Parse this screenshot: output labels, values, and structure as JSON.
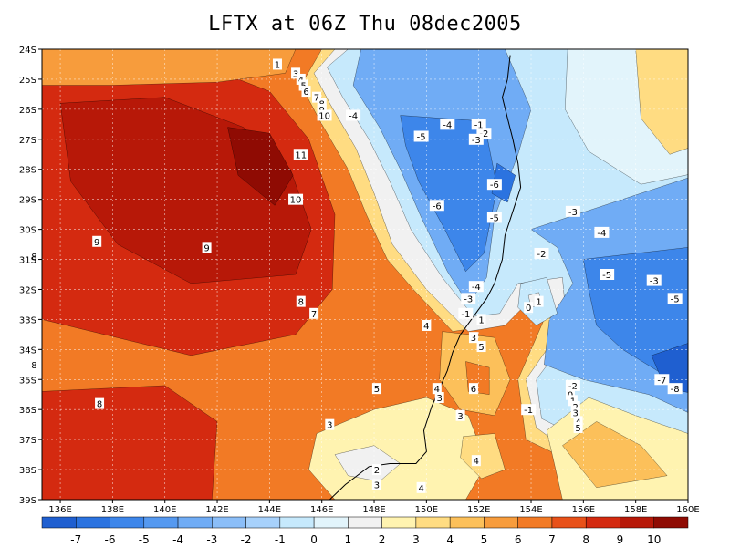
{
  "title": "LFTX at 06Z Thu 08dec2005",
  "map": {
    "lat_labels": [
      "24S",
      "25S",
      "26S",
      "27S",
      "28S",
      "29S",
      "30S",
      "31S",
      "32S",
      "33S",
      "34S",
      "35S",
      "36S",
      "37S",
      "38S",
      "39S"
    ],
    "lon_labels": [
      "136E",
      "138E",
      "140E",
      "142E",
      "144E",
      "146E",
      "148E",
      "150E",
      "152E",
      "154E",
      "156E",
      "158E",
      "160E"
    ],
    "contour_labels": [
      {
        "t": "1",
        "lon": 144.3,
        "lat": 24.5
      },
      {
        "t": "3",
        "lon": 145.0,
        "lat": 24.8
      },
      {
        "t": "4",
        "lon": 145.2,
        "lat": 25.0
      },
      {
        "t": "5",
        "lon": 145.3,
        "lat": 25.2
      },
      {
        "t": "6",
        "lon": 145.4,
        "lat": 25.4
      },
      {
        "t": "7",
        "lon": 145.8,
        "lat": 25.6
      },
      {
        "t": "8",
        "lon": 146.0,
        "lat": 25.8
      },
      {
        "t": "9",
        "lon": 146.0,
        "lat": 26.0
      },
      {
        "t": "10",
        "lon": 146.1,
        "lat": 26.2
      },
      {
        "t": "11",
        "lon": 145.2,
        "lat": 27.5
      },
      {
        "t": "10",
        "lon": 145.0,
        "lat": 29.0
      },
      {
        "t": "9",
        "lon": 137.4,
        "lat": 30.4
      },
      {
        "t": "9",
        "lon": 141.6,
        "lat": 30.6
      },
      {
        "t": "8",
        "lon": 135.0,
        "lat": 30.9
      },
      {
        "t": "8",
        "lon": 145.2,
        "lat": 32.4
      },
      {
        "t": "7",
        "lon": 145.7,
        "lat": 32.8
      },
      {
        "t": "8",
        "lon": 135.0,
        "lat": 34.5
      },
      {
        "t": "-4",
        "lon": 147.2,
        "lat": 26.2
      },
      {
        "t": "-4",
        "lon": 150.8,
        "lat": 26.5
      },
      {
        "t": "-5",
        "lon": 149.8,
        "lat": 26.9
      },
      {
        "t": "-1",
        "lon": 152.0,
        "lat": 26.5
      },
      {
        "t": "-2",
        "lon": 152.2,
        "lat": 26.8
      },
      {
        "t": "-3",
        "lon": 151.9,
        "lat": 27.0
      },
      {
        "t": "-6",
        "lon": 152.6,
        "lat": 28.5
      },
      {
        "t": "-6",
        "lon": 150.4,
        "lat": 29.2
      },
      {
        "t": "-5",
        "lon": 152.6,
        "lat": 29.6
      },
      {
        "t": "-3",
        "lon": 155.6,
        "lat": 29.4
      },
      {
        "t": "-4",
        "lon": 156.7,
        "lat": 30.1
      },
      {
        "t": "-2",
        "lon": 154.4,
        "lat": 30.8
      },
      {
        "t": "-5",
        "lon": 156.9,
        "lat": 31.5
      },
      {
        "t": "-3",
        "lon": 158.7,
        "lat": 31.7
      },
      {
        "t": "-5",
        "lon": 159.5,
        "lat": 32.3
      },
      {
        "t": "-4",
        "lon": 151.9,
        "lat": 31.9
      },
      {
        "t": "-3",
        "lon": 151.6,
        "lat": 32.3
      },
      {
        "t": "-1",
        "lon": 151.5,
        "lat": 32.8
      },
      {
        "t": "1",
        "lon": 152.1,
        "lat": 33.0
      },
      {
        "t": "1",
        "lon": 154.3,
        "lat": 32.4
      },
      {
        "t": "0",
        "lon": 153.9,
        "lat": 32.6
      },
      {
        "t": "4",
        "lon": 150.0,
        "lat": 33.2
      },
      {
        "t": "3",
        "lon": 151.8,
        "lat": 33.6
      },
      {
        "t": "5",
        "lon": 152.1,
        "lat": 33.9
      },
      {
        "t": "6",
        "lon": 151.8,
        "lat": 35.3
      },
      {
        "t": "5",
        "lon": 148.1,
        "lat": 35.3
      },
      {
        "t": "4",
        "lon": 150.4,
        "lat": 35.3
      },
      {
        "t": "3",
        "lon": 150.5,
        "lat": 35.6
      },
      {
        "t": "-1",
        "lon": 153.9,
        "lat": 36.0
      },
      {
        "t": "-2",
        "lon": 155.6,
        "lat": 35.2
      },
      {
        "t": "0",
        "lon": 155.5,
        "lat": 35.5
      },
      {
        "t": "1",
        "lon": 155.6,
        "lat": 35.7
      },
      {
        "t": "2",
        "lon": 155.7,
        "lat": 35.9
      },
      {
        "t": "3",
        "lon": 155.7,
        "lat": 36.1
      },
      {
        "t": "4",
        "lon": 155.8,
        "lat": 36.4
      },
      {
        "t": "5",
        "lon": 155.8,
        "lat": 36.6
      },
      {
        "t": "-7",
        "lon": 159.0,
        "lat": 35.0
      },
      {
        "t": "-8",
        "lon": 159.5,
        "lat": 35.3
      },
      {
        "t": "3",
        "lon": 146.3,
        "lat": 36.5
      },
      {
        "t": "3",
        "lon": 151.3,
        "lat": 36.2
      },
      {
        "t": "4",
        "lon": 151.9,
        "lat": 37.7
      },
      {
        "t": "2",
        "lon": 148.1,
        "lat": 38.0
      },
      {
        "t": "3",
        "lon": 148.1,
        "lat": 38.5
      },
      {
        "t": "4",
        "lon": 149.8,
        "lat": 38.6
      },
      {
        "t": "8",
        "lon": 137.5,
        "lat": 35.8
      }
    ]
  },
  "colorbar": {
    "labels": [
      "-7",
      "-6",
      "-5",
      "-4",
      "-3",
      "-2",
      "-1",
      "0",
      "1",
      "2",
      "3",
      "4",
      "5",
      "6",
      "7",
      "8",
      "9",
      "10"
    ],
    "colors": [
      "#1f5fd0",
      "#2b73e0",
      "#3d86ea",
      "#5599f0",
      "#70acf5",
      "#8bbef8",
      "#a7d1fb",
      "#c6e9fc",
      "#e2f4fb",
      "#f1f1f1",
      "#fff3b0",
      "#ffdc82",
      "#fcc05a",
      "#f79c3c",
      "#f27a25",
      "#e85119",
      "#d42a10",
      "#b71808",
      "#8f0b03"
    ]
  },
  "value_colors": {
    "-8": "#1656c8",
    "-7": "#1f5fd0",
    "-6": "#2b73e0",
    "-5": "#3d86ea",
    "-4": "#5599f0",
    "-3": "#70acf5",
    "-2": "#8bbef8",
    "-1": "#a7d1fb",
    "0": "#c6e9fc",
    "1": "#e2f4fb",
    "2": "#f1f1f1",
    "3": "#fff3b0",
    "4": "#ffdc82",
    "5": "#fcc05a",
    "6": "#f79c3c",
    "7": "#f27a25",
    "8": "#e85119",
    "9": "#d42a10",
    "10": "#b71808",
    "11": "#8f0b03"
  }
}
